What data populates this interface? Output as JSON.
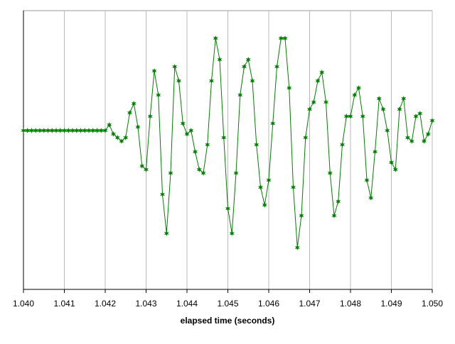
{
  "chart_data": {
    "type": "line",
    "xlabel": "elapsed time (seconds)",
    "color": "#008000",
    "grid": true,
    "x": [
      1.04,
      1.0401,
      1.0402,
      1.0403,
      1.0404,
      1.0405,
      1.0406,
      1.0407,
      1.0408,
      1.0409,
      1.041,
      1.0411,
      1.0412,
      1.0413,
      1.0414,
      1.0415,
      1.0416,
      1.0417,
      1.0418,
      1.0419,
      1.042,
      1.0421,
      1.0422,
      1.0423,
      1.0424,
      1.0425,
      1.0426,
      1.0427,
      1.0428,
      1.0429,
      1.043,
      1.0431,
      1.0432,
      1.0433,
      1.0434,
      1.0435,
      1.0436,
      1.0437,
      1.0438,
      1.0439,
      1.044,
      1.0441,
      1.0442,
      1.0443,
      1.0444,
      1.0445,
      1.0446,
      1.0447,
      1.0448,
      1.0449,
      1.045,
      1.0451,
      1.0452,
      1.0453,
      1.0454,
      1.0455,
      1.0456,
      1.0457,
      1.0458,
      1.0459,
      1.046,
      1.0461,
      1.0462,
      1.0463,
      1.0464,
      1.0465,
      1.0466,
      1.0467,
      1.0468,
      1.0469,
      1.047,
      1.0471,
      1.0472,
      1.0473,
      1.0474,
      1.0475,
      1.0476,
      1.0477,
      1.0478,
      1.0479,
      1.048,
      1.0481,
      1.0482,
      1.0483,
      1.0484,
      1.0485,
      1.0486,
      1.0487,
      1.0488,
      1.0489,
      1.049,
      1.0491,
      1.0492,
      1.0493,
      1.0494,
      1.0495,
      1.0496,
      1.0497,
      1.0498,
      1.0499,
      1.05
    ],
    "values": [
      0,
      0,
      0,
      0,
      0,
      0,
      0,
      0,
      0,
      0,
      0,
      0,
      0,
      0,
      0,
      0,
      0,
      0,
      0,
      0,
      0,
      0.08,
      -0.05,
      -0.1,
      -0.15,
      -0.1,
      0.25,
      0.38,
      0.05,
      -0.5,
      -0.55,
      0.2,
      0.84,
      0.5,
      -0.9,
      -1.45,
      -0.6,
      0.9,
      0.7,
      0.1,
      -0.05,
      0.0,
      -0.3,
      -0.55,
      -0.6,
      -0.2,
      0.7,
      1.3,
      1.0,
      -0.1,
      -1.1,
      -1.45,
      -0.6,
      0.5,
      0.9,
      1.0,
      0.7,
      -0.2,
      -0.8,
      -1.05,
      -0.7,
      0.1,
      0.9,
      1.3,
      1.3,
      0.6,
      -0.8,
      -1.65,
      -1.2,
      -0.1,
      0.3,
      0.4,
      0.7,
      0.82,
      0.4,
      -0.6,
      -1.2,
      -1.0,
      -0.2,
      0.2,
      0.2,
      0.5,
      0.6,
      0.2,
      -0.7,
      -0.95,
      -0.3,
      0.45,
      0.3,
      0.0,
      -0.45,
      -0.55,
      0.3,
      0.45,
      -0.1,
      -0.15,
      0.2,
      0.24,
      -0.15,
      -0.05,
      0.14
    ],
    "xlim": [
      1.04,
      1.05
    ],
    "ylim": [
      -2.24,
      1.69
    ],
    "xticks": [
      {
        "value": 1.04,
        "label": "1.040"
      },
      {
        "value": 1.041,
        "label": "1.041"
      },
      {
        "value": 1.042,
        "label": "1.042"
      },
      {
        "value": 1.043,
        "label": "1.043"
      },
      {
        "value": 1.044,
        "label": "1.044"
      },
      {
        "value": 1.045,
        "label": "1.045"
      },
      {
        "value": 1.046,
        "label": "1.046"
      },
      {
        "value": 1.047,
        "label": "1.047"
      },
      {
        "value": 1.048,
        "label": "1.048"
      },
      {
        "value": 1.049,
        "label": "1.049"
      },
      {
        "value": 1.05,
        "label": "1.050"
      }
    ]
  }
}
